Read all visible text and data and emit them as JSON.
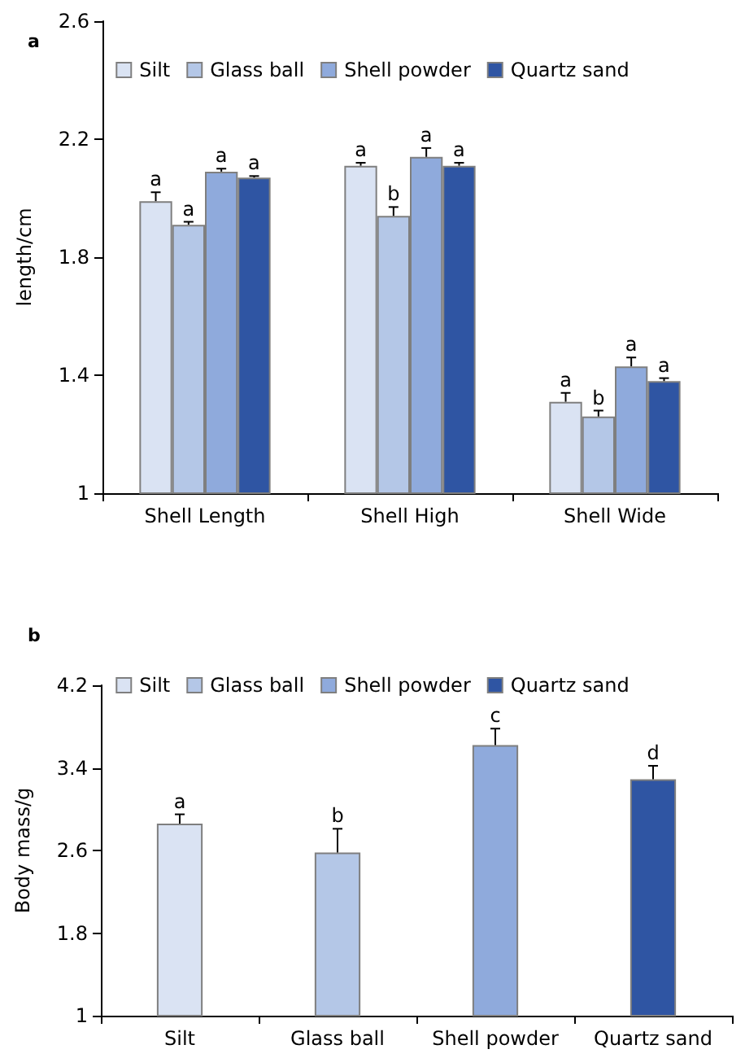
{
  "chart_data": [
    {
      "type": "bar",
      "title": "a",
      "ylabel": "length/cm",
      "categories": [
        "Shell Length",
        "Shell High",
        "Shell Wide"
      ],
      "series": [
        {
          "name": "Silt",
          "color": "#dae3f3",
          "values": [
            1.99,
            2.11,
            1.31
          ],
          "errors": [
            [
              1.99,
              2.02
            ],
            [
              2.11,
              2.12
            ],
            [
              1.31,
              1.34
            ]
          ],
          "value_labels": [
            "a",
            "a",
            "a"
          ]
        },
        {
          "name": "Glass ball",
          "color": "#b4c7e7",
          "values": [
            1.91,
            1.94,
            1.26
          ],
          "errors": [
            [
              1.91,
              1.92
            ],
            [
              1.94,
              1.97
            ],
            [
              1.26,
              1.28
            ]
          ],
          "value_labels": [
            "a",
            "b",
            "b"
          ]
        },
        {
          "name": "Shell powder",
          "color": "#8faadc",
          "values": [
            2.09,
            2.14,
            1.43
          ],
          "errors": [
            [
              2.09,
              2.1
            ],
            [
              2.14,
              2.17
            ],
            [
              1.43,
              1.46
            ]
          ],
          "value_labels": [
            "a",
            "a",
            "a"
          ]
        },
        {
          "name": "Quartz sand",
          "color": "#2f55a3",
          "values": [
            2.07,
            2.11,
            1.38
          ],
          "errors": [
            [
              2.07,
              2.075
            ],
            [
              2.11,
              2.12
            ],
            [
              1.38,
              1.39
            ]
          ],
          "value_labels": [
            "a",
            "a",
            "a"
          ]
        }
      ],
      "ylim": [
        1,
        2.6
      ],
      "yticks": [
        1,
        1.4,
        1.8,
        2.2,
        2.6
      ],
      "grid": false,
      "legend": "top"
    },
    {
      "type": "bar",
      "title": "b",
      "ylabel": "Body mass/g",
      "categories": [
        "Silt",
        "Glass ball",
        "Shell powder",
        "Quartz sand"
      ],
      "series": [
        {
          "name": "Silt",
          "color": "#dae3f3",
          "values": [
            2.86,
            null,
            null,
            null
          ],
          "errors": [
            [
              2.86,
              2.95
            ],
            null,
            null,
            null
          ],
          "value_labels": [
            "a",
            null,
            null,
            null
          ]
        },
        {
          "name": "Glass ball",
          "color": "#b4c7e7",
          "values": [
            null,
            2.58,
            null,
            null
          ],
          "errors": [
            null,
            [
              2.58,
              2.81
            ],
            null,
            null
          ],
          "value_labels": [
            null,
            "b",
            null,
            null
          ]
        },
        {
          "name": "Shell powder",
          "color": "#8faadc",
          "values": [
            null,
            null,
            3.62,
            null
          ],
          "errors": [
            null,
            null,
            [
              3.62,
              3.78
            ],
            null
          ],
          "value_labels": [
            null,
            null,
            "c",
            null
          ]
        },
        {
          "name": "Quartz sand",
          "color": "#2f55a3",
          "values": [
            null,
            null,
            null,
            3.29
          ],
          "errors": [
            null,
            null,
            null,
            [
              3.29,
              3.42
            ]
          ],
          "value_labels": [
            null,
            null,
            null,
            "d"
          ]
        }
      ],
      "ylim": [
        1,
        4.2
      ],
      "yticks": [
        1,
        1.8,
        2.6,
        3.4,
        4.2
      ],
      "grid": false,
      "legend": "top"
    }
  ]
}
